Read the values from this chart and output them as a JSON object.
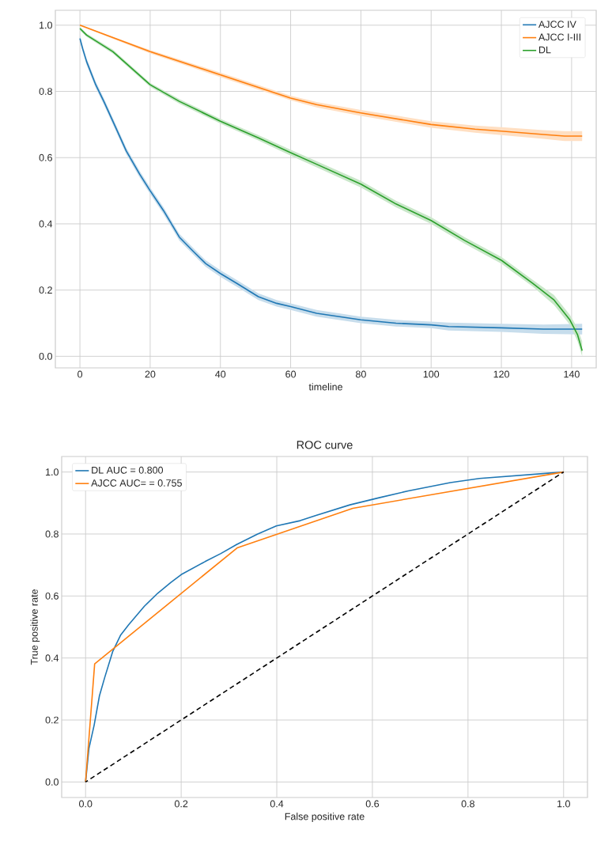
{
  "chart_data": [
    {
      "type": "line",
      "xlabel": "timeline",
      "xlim": [
        -7,
        147
      ],
      "ylim": [
        -0.035,
        1.045
      ],
      "xticks": [
        0,
        20,
        40,
        60,
        80,
        100,
        120,
        140
      ],
      "yticks": [
        {
          "value": 0,
          "label": "0.0"
        },
        {
          "value": 0.2,
          "label": "0.2"
        },
        {
          "value": 0.4,
          "label": "0.4"
        },
        {
          "value": 0.6,
          "label": "0.6"
        },
        {
          "value": 0.8,
          "label": "0.8"
        },
        {
          "value": 1,
          "label": "1.0"
        }
      ],
      "grid": true,
      "legend": "top right",
      "series": [
        {
          "name": "AJCC IV",
          "color": "#1f77b4",
          "x": [
            0,
            0.75,
            1.9,
            4.5,
            6.8,
            9.8,
            13.2,
            17,
            20,
            23.8,
            28.3,
            32,
            35.8,
            40,
            44.7,
            50.8,
            56,
            60,
            67.4,
            80,
            90,
            100,
            105,
            120,
            132,
            143
          ],
          "values": [
            0.96,
            0.93,
            0.89,
            0.82,
            0.77,
            0.7,
            0.62,
            0.55,
            0.5,
            0.44,
            0.36,
            0.32,
            0.28,
            0.25,
            0.22,
            0.18,
            0.16,
            0.15,
            0.13,
            0.11,
            0.1,
            0.095,
            0.09,
            0.086,
            0.082,
            0.082
          ],
          "lower": [
            0.95,
            0.92,
            0.88,
            0.81,
            0.76,
            0.69,
            0.61,
            0.54,
            0.49,
            0.43,
            0.35,
            0.31,
            0.27,
            0.24,
            0.21,
            0.17,
            0.15,
            0.14,
            0.12,
            0.1,
            0.09,
            0.085,
            0.078,
            0.074,
            0.068,
            0.066
          ],
          "upper": [
            0.97,
            0.94,
            0.9,
            0.83,
            0.78,
            0.71,
            0.63,
            0.56,
            0.51,
            0.45,
            0.37,
            0.33,
            0.29,
            0.26,
            0.23,
            0.19,
            0.17,
            0.16,
            0.14,
            0.12,
            0.11,
            0.105,
            0.102,
            0.098,
            0.096,
            0.098
          ]
        },
        {
          "name": "AJCC I-III",
          "color": "#ff7f0e",
          "x": [
            0,
            20,
            40,
            60,
            67.4,
            80,
            100,
            112.5,
            120,
            132,
            138,
            143
          ],
          "values": [
            1.0,
            0.92,
            0.85,
            0.78,
            0.76,
            0.735,
            0.7,
            0.686,
            0.68,
            0.67,
            0.665,
            0.665
          ],
          "lower": [
            0.998,
            0.915,
            0.843,
            0.773,
            0.752,
            0.726,
            0.69,
            0.675,
            0.668,
            0.657,
            0.65,
            0.65
          ],
          "upper": [
            1.0,
            0.925,
            0.857,
            0.787,
            0.768,
            0.744,
            0.71,
            0.697,
            0.692,
            0.683,
            0.68,
            0.68
          ]
        },
        {
          "name": "DL",
          "color": "#2ca02c",
          "x": [
            0,
            1.9,
            9.4,
            20,
            28.3,
            40,
            50.8,
            60,
            67.4,
            80,
            90,
            100,
            109.5,
            120,
            129,
            135,
            139.5,
            141.7,
            143
          ],
          "values": [
            0.99,
            0.97,
            0.92,
            0.82,
            0.77,
            0.71,
            0.66,
            0.615,
            0.58,
            0.52,
            0.46,
            0.41,
            0.35,
            0.29,
            0.22,
            0.17,
            0.11,
            0.065,
            0.017
          ],
          "lower": [
            0.985,
            0.965,
            0.914,
            0.814,
            0.763,
            0.703,
            0.652,
            0.606,
            0.571,
            0.51,
            0.45,
            0.4,
            0.34,
            0.28,
            0.21,
            0.155,
            0.095,
            0.045,
            0.0
          ],
          "upper": [
            0.995,
            0.975,
            0.926,
            0.826,
            0.777,
            0.717,
            0.668,
            0.624,
            0.589,
            0.53,
            0.47,
            0.42,
            0.36,
            0.3,
            0.23,
            0.185,
            0.125,
            0.085,
            0.045
          ]
        }
      ]
    },
    {
      "type": "line",
      "title": "ROC curve",
      "xlabel": "False positive rate",
      "ylabel": "True positive rate",
      "xlim": [
        -0.05,
        1.05
      ],
      "ylim": [
        -0.05,
        1.05
      ],
      "xticks": [
        {
          "value": 0,
          "label": "0.0"
        },
        {
          "value": 0.2,
          "label": "0.2"
        },
        {
          "value": 0.4,
          "label": "0.4"
        },
        {
          "value": 0.6,
          "label": "0.6"
        },
        {
          "value": 0.8,
          "label": "0.8"
        },
        {
          "value": 1,
          "label": "1.0"
        }
      ],
      "yticks": [
        {
          "value": 0,
          "label": "0.0"
        },
        {
          "value": 0.2,
          "label": "0.2"
        },
        {
          "value": 0.4,
          "label": "0.4"
        },
        {
          "value": 0.6,
          "label": "0.6"
        },
        {
          "value": 0.8,
          "label": "0.8"
        },
        {
          "value": 1,
          "label": "1.0"
        }
      ],
      "grid": true,
      "legend": "top left",
      "series": [
        {
          "name": "DL AUC = 0.800",
          "color": "#1f77b4",
          "x": [
            0,
            0.007,
            0.018,
            0.029,
            0.04,
            0.057,
            0.073,
            0.09,
            0.123,
            0.151,
            0.178,
            0.2,
            0.25,
            0.283,
            0.316,
            0.36,
            0.399,
            0.449,
            0.482,
            0.553,
            0.614,
            0.675,
            0.763,
            0.824,
            1
          ],
          "values": [
            0,
            0.108,
            0.184,
            0.278,
            0.337,
            0.422,
            0.473,
            0.507,
            0.567,
            0.609,
            0.643,
            0.669,
            0.711,
            0.737,
            0.766,
            0.8,
            0.826,
            0.843,
            0.86,
            0.894,
            0.917,
            0.939,
            0.966,
            0.979,
            1
          ]
        },
        {
          "name": "AJCC AUC= = 0.755",
          "color": "#ff7f0e",
          "x": [
            0,
            0.019,
            0.317,
            0.559,
            1
          ],
          "values": [
            0,
            0.381,
            0.755,
            0.883,
            1
          ]
        },
        {
          "color": "#000000",
          "line_style": "dashed",
          "x": [
            0,
            1
          ],
          "values": [
            0,
            1
          ]
        }
      ]
    }
  ]
}
